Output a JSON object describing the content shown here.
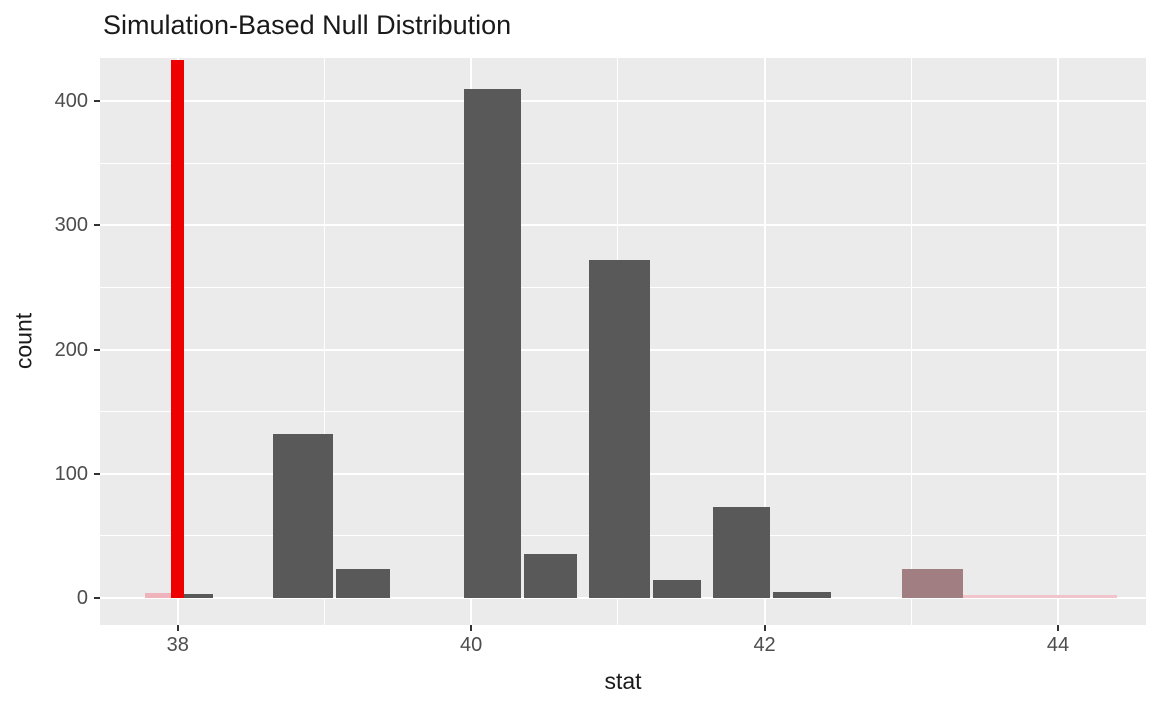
{
  "colors": {
    "panel_background": "#EBEBEB",
    "gridline": "#FFFFFF",
    "bar": "#595959",
    "observed_line": "#EE0000",
    "shaded_bar": "#A07E82",
    "pink_bar": "#EFB3BB",
    "tail_strip": "#F0C4CA",
    "tick_label": "#4D4D4D",
    "title_text": "#1A1A1A"
  },
  "chart_data": {
    "type": "bar",
    "title": "Simulation-Based Null Distribution",
    "xlabel": "stat",
    "ylabel": "count",
    "xlim": [
      37.47,
      44.6
    ],
    "ylim": [
      -22,
      435
    ],
    "x_ticks": [
      38,
      40,
      42,
      44
    ],
    "x_minor": [
      39,
      41,
      43
    ],
    "y_ticks": [
      0,
      100,
      200,
      300,
      400
    ],
    "y_minor": [
      50,
      150,
      250,
      350
    ],
    "grid": true,
    "legend": "none",
    "observed_stat": 38,
    "bars": [
      {
        "x0": 37.78,
        "x1": 38.0,
        "count": 4,
        "fill": "pink"
      },
      {
        "x0": 38.04,
        "x1": 38.24,
        "count": 3,
        "fill": "dark"
      },
      {
        "x0": 38.65,
        "x1": 39.06,
        "count": 132,
        "fill": "dark"
      },
      {
        "x0": 39.08,
        "x1": 39.45,
        "count": 23,
        "fill": "dark"
      },
      {
        "x0": 39.95,
        "x1": 40.34,
        "count": 410,
        "fill": "dark"
      },
      {
        "x0": 40.36,
        "x1": 40.72,
        "count": 35,
        "fill": "dark"
      },
      {
        "x0": 40.8,
        "x1": 41.22,
        "count": 272,
        "fill": "dark"
      },
      {
        "x0": 41.24,
        "x1": 41.57,
        "count": 14,
        "fill": "dark"
      },
      {
        "x0": 41.65,
        "x1": 42.04,
        "count": 73,
        "fill": "dark"
      },
      {
        "x0": 42.06,
        "x1": 42.45,
        "count": 5,
        "fill": "dark"
      },
      {
        "x0": 42.94,
        "x1": 43.35,
        "count": 23,
        "fill": "shaded"
      }
    ],
    "pvalue_shading": {
      "right_tail_strip": {
        "x0": 42.94,
        "x1": 44.4,
        "count": 2
      }
    }
  }
}
